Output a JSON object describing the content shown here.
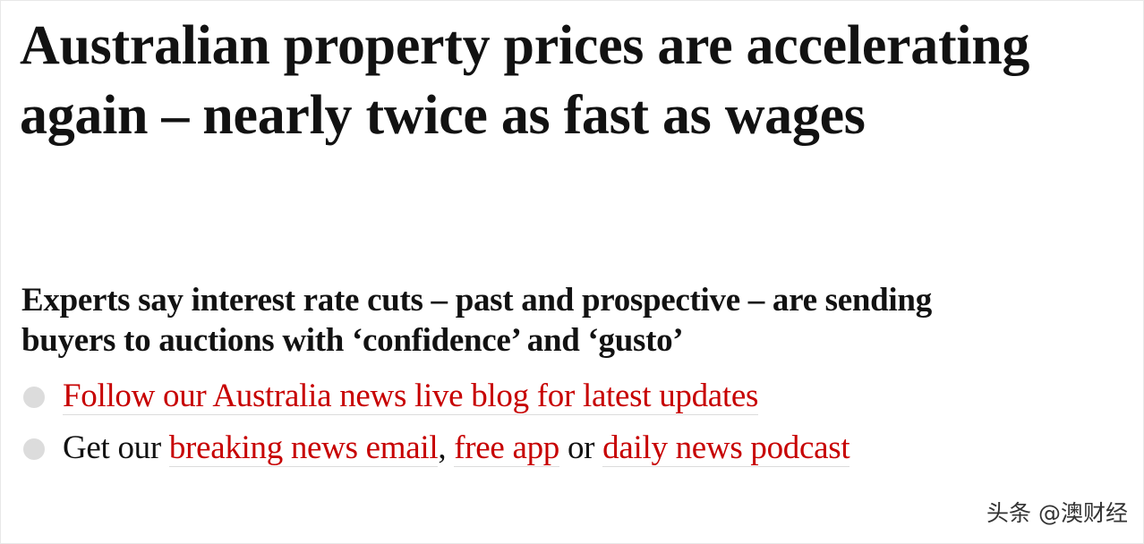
{
  "headline": "Australian property prices are accelerating again – nearly twice as fast as wages",
  "standfirst": "Experts say interest rate cuts – past and prospective – are sending buyers to auctions with ‘confidence’ and ‘gusto’",
  "bullets": [
    {
      "link": "Follow our Australia news live blog for latest updates"
    },
    {
      "text_1": "Get our",
      "link_1": "breaking news email",
      "text_2": ",",
      "link_2": "free app",
      "text_3": "or",
      "link_3": "daily news podcast"
    }
  ],
  "watermark": "头条 @澳财经"
}
